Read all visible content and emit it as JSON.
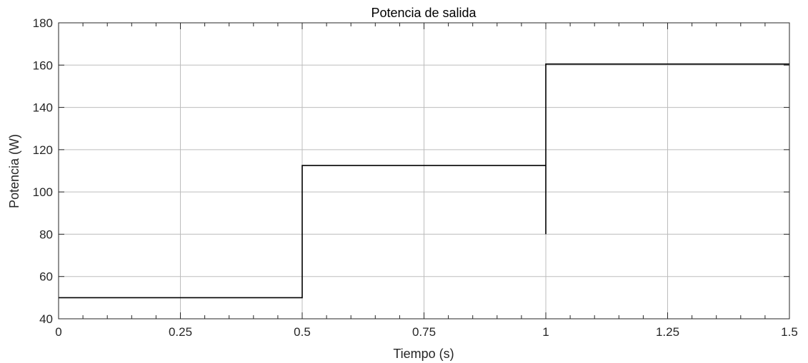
{
  "chart_data": {
    "type": "line",
    "title": "Potencia de salida",
    "xlabel": "Tiempo (s)",
    "ylabel": "Potencia (W)",
    "xlim": [
      0,
      1.5
    ],
    "ylim": [
      40,
      180
    ],
    "xticks": [
      0,
      0.25,
      0.5,
      0.75,
      1,
      1.25,
      1.5
    ],
    "xtick_labels": [
      "0",
      "0.25",
      "0.5",
      "0.75",
      "1",
      "1.25",
      "1.5"
    ],
    "yticks": [
      40,
      60,
      80,
      100,
      120,
      140,
      160,
      180
    ],
    "ytick_labels": [
      "40",
      "60",
      "80",
      "100",
      "120",
      "140",
      "160",
      "180"
    ],
    "grid": true,
    "series": [
      {
        "x": [
          0,
          0.5,
          0.5,
          1.0,
          1.0,
          1.0,
          1.0,
          1.5
        ],
        "y": [
          50,
          50,
          112.5,
          112.5,
          80,
          160.5,
          160.5,
          160.5
        ],
        "color": "#000000"
      }
    ]
  }
}
